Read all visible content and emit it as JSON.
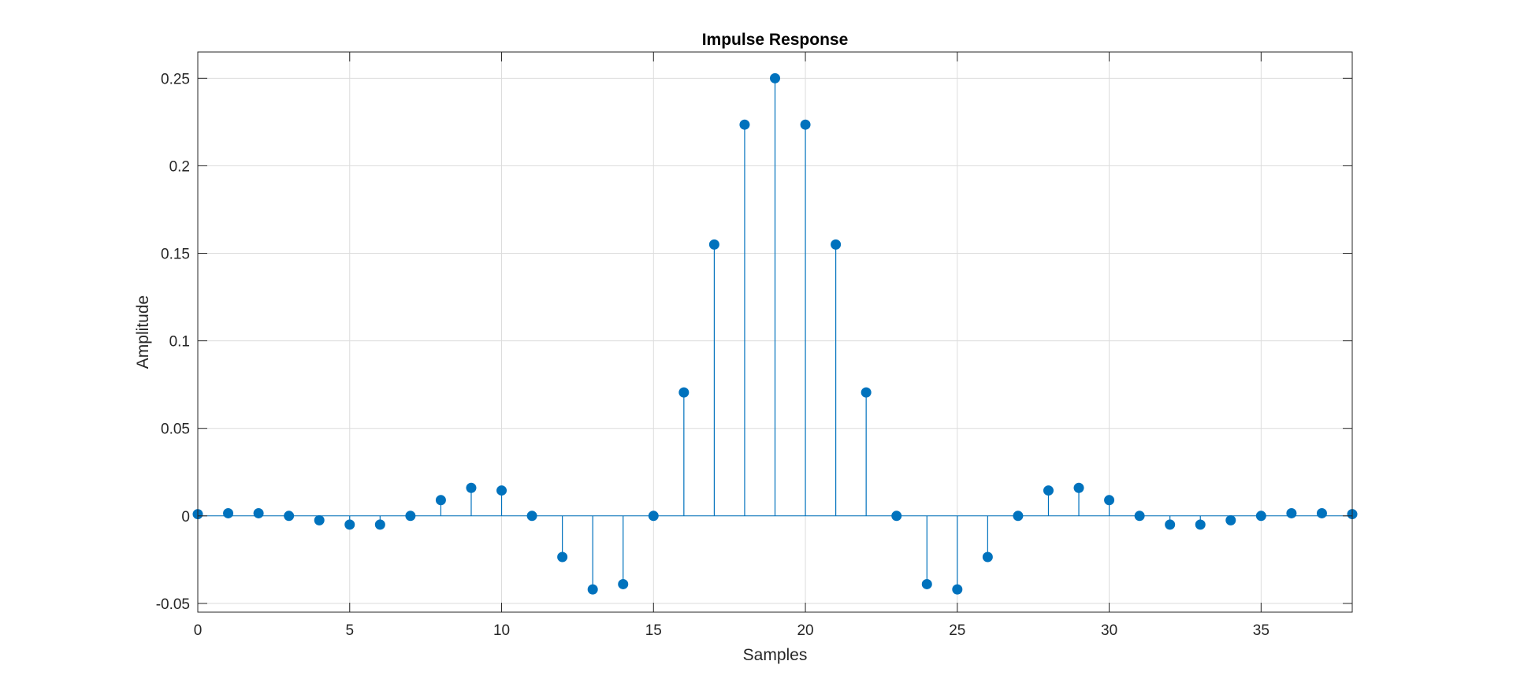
{
  "colors": {
    "series": "#0072bd",
    "axis": "#262626",
    "grid": "#dcdcdc",
    "background": "#ffffff"
  },
  "chart_data": {
    "type": "stem",
    "title": "Impulse Response",
    "xlabel": "Samples",
    "ylabel": "Amplitude",
    "xlim": [
      0,
      38
    ],
    "ylim": [
      -0.055,
      0.265
    ],
    "grid": true,
    "box": true,
    "legend": "none",
    "x_ticks": [
      0,
      5,
      10,
      15,
      20,
      25,
      30,
      35
    ],
    "x_tick_labels": [
      "0",
      "5",
      "10",
      "15",
      "20",
      "25",
      "30",
      "35"
    ],
    "y_ticks": [
      -0.05,
      0,
      0.05,
      0.1,
      0.15,
      0.2,
      0.25
    ],
    "y_tick_labels": [
      "-0.05",
      "0",
      "0.05",
      "0.1",
      "0.15",
      "0.2",
      "0.25"
    ],
    "x": [
      0,
      1,
      2,
      3,
      4,
      5,
      6,
      7,
      8,
      9,
      10,
      11,
      12,
      13,
      14,
      15,
      16,
      17,
      18,
      19,
      20,
      21,
      22,
      23,
      24,
      25,
      26,
      27,
      28,
      29,
      30,
      31,
      32,
      33,
      34,
      35,
      36,
      37,
      38
    ],
    "values": [
      0.001,
      0.0015,
      0.0015,
      0.0,
      -0.0025,
      -0.005,
      -0.005,
      0.0,
      0.009,
      0.016,
      0.0145,
      0.0,
      -0.0235,
      -0.042,
      -0.039,
      0.0,
      0.0705,
      0.155,
      0.2235,
      0.25,
      0.2235,
      0.155,
      0.0705,
      0.0,
      -0.039,
      -0.042,
      -0.0235,
      0.0,
      0.0145,
      0.016,
      0.009,
      0.0,
      -0.005,
      -0.005,
      -0.0025,
      0.0,
      0.0015,
      0.0015,
      0.001
    ]
  }
}
